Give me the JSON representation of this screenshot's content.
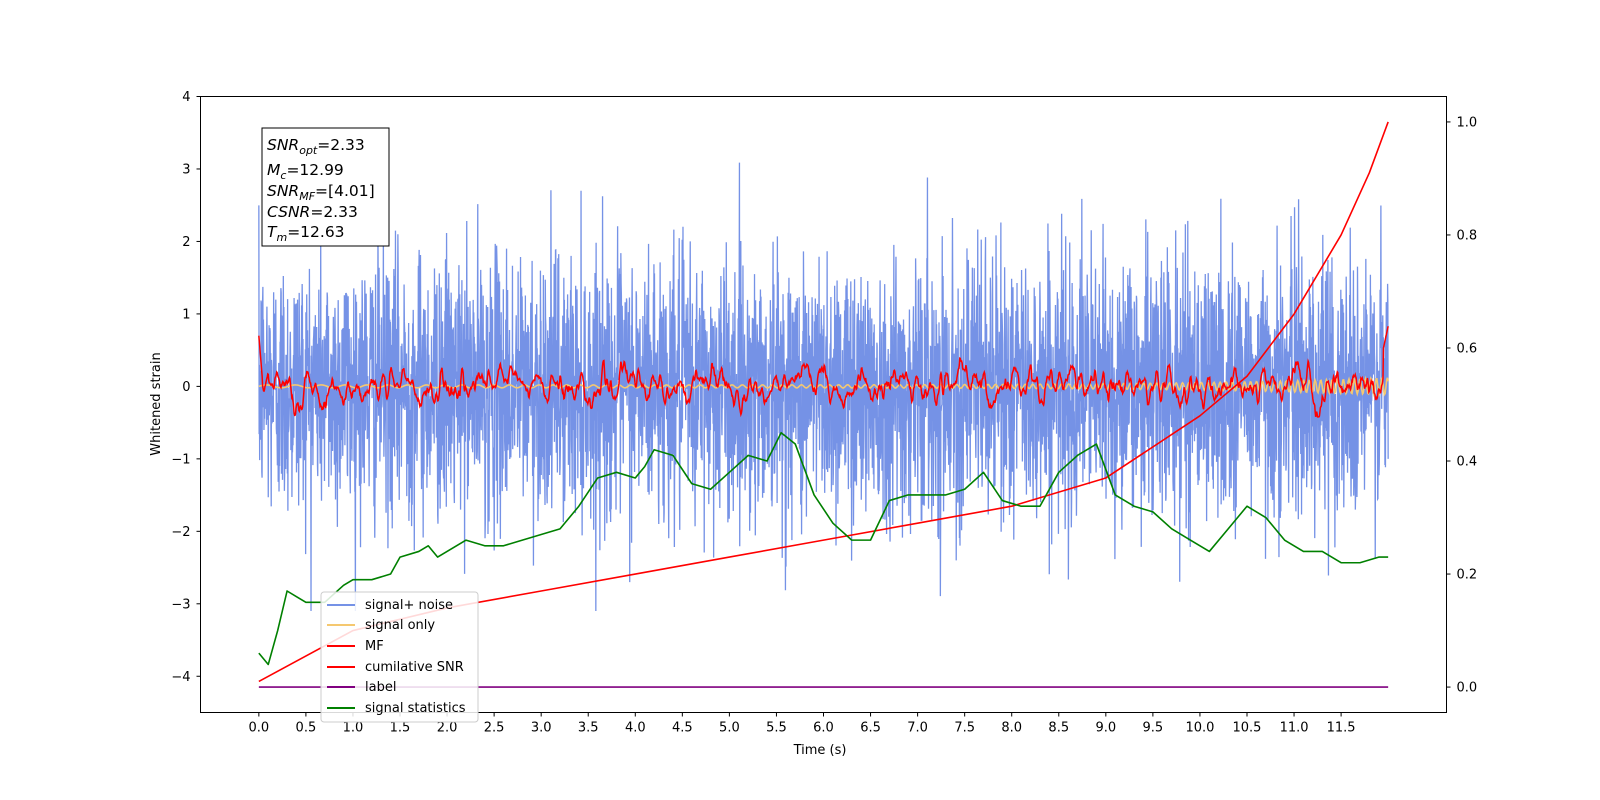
{
  "chart_data": {
    "type": "line",
    "xlabel": "Time (s)",
    "ylabel": "Whitened strain",
    "xlim": [
      -0.62,
      12.62
    ],
    "ylim_left": [
      -4.5,
      4.0
    ],
    "ylim_right": [
      -0.045,
      1.045
    ],
    "x_ticks": [
      "0.0",
      "0.5",
      "1.0",
      "1.5",
      "2.0",
      "2.5",
      "3.0",
      "3.5",
      "4.0",
      "4.5",
      "5.0",
      "5.5",
      "6.0",
      "6.5",
      "7.0",
      "7.5",
      "8.0",
      "8.5",
      "9.0",
      "9.5",
      "10.0",
      "10.5",
      "11.0",
      "11.5"
    ],
    "y_ticks_left": [
      "4",
      "3",
      "2",
      "1",
      "0",
      "−1",
      "−2",
      "−3",
      "−4"
    ],
    "y_ticks_right": [
      "1.0",
      "0.8",
      "0.6",
      "0.4",
      "0.2",
      "0.0"
    ],
    "grid": false,
    "legend_position": "lower-left",
    "info_box": {
      "snr_opt": {
        "base": "SNR",
        "sub": "opt",
        "value": "=2.33"
      },
      "mc": {
        "base": "M",
        "sub": "c",
        "value": "=12.99"
      },
      "snr_mf": {
        "base": "SNR",
        "sub": "MF",
        "value": "=[4.01]"
      },
      "csnr": {
        "base": "CSNR",
        "sub": "",
        "value": "=2.33"
      },
      "tm": {
        "base": "T",
        "sub": "m",
        "value": "=12.63"
      }
    },
    "series": [
      {
        "name": "signal+ noise",
        "color": "#7592e6",
        "axis": "left",
        "description_range": [
          -3.1,
          3.6
        ],
        "std": 0.9
      },
      {
        "name": "signal only",
        "color": "#f5c870",
        "axis": "left"
      },
      {
        "name": "MF",
        "color": "#ff0000",
        "axis": "left"
      },
      {
        "name": "cumilative SNR",
        "color": "#ff0000",
        "axis": "right",
        "x": [
          0.0,
          1.0,
          2.0,
          3.0,
          4.0,
          5.0,
          6.0,
          7.0,
          8.0,
          9.0,
          10.0,
          10.5,
          11.0,
          11.5,
          11.8,
          12.0
        ],
        "values": [
          0.01,
          0.1,
          0.14,
          0.17,
          0.2,
          0.23,
          0.26,
          0.29,
          0.32,
          0.37,
          0.48,
          0.55,
          0.66,
          0.8,
          0.91,
          1.0
        ]
      },
      {
        "name": "label",
        "color": "#800080",
        "axis": "right",
        "x": [
          0.0,
          12.0
        ],
        "values": [
          0.0,
          0.0
        ]
      },
      {
        "name": "signal statistics",
        "color": "#008000",
        "axis": "right",
        "x": [
          0.0,
          0.1,
          0.2,
          0.3,
          0.4,
          0.5,
          0.7,
          0.9,
          1.0,
          1.2,
          1.4,
          1.5,
          1.7,
          1.8,
          1.9,
          2.0,
          2.2,
          2.4,
          2.6,
          2.8,
          3.0,
          3.2,
          3.4,
          3.6,
          3.8,
          4.0,
          4.1,
          4.2,
          4.4,
          4.6,
          4.8,
          5.0,
          5.2,
          5.4,
          5.55,
          5.7,
          5.9,
          6.1,
          6.3,
          6.5,
          6.7,
          6.9,
          7.1,
          7.3,
          7.5,
          7.7,
          7.9,
          8.1,
          8.3,
          8.5,
          8.7,
          8.9,
          9.1,
          9.3,
          9.5,
          9.7,
          9.9,
          10.1,
          10.3,
          10.5,
          10.7,
          10.9,
          11.1,
          11.3,
          11.5,
          11.7,
          11.9,
          12.0
        ],
        "values": [
          0.06,
          0.04,
          0.1,
          0.17,
          0.16,
          0.15,
          0.15,
          0.18,
          0.19,
          0.19,
          0.2,
          0.23,
          0.24,
          0.25,
          0.23,
          0.24,
          0.26,
          0.25,
          0.25,
          0.26,
          0.27,
          0.28,
          0.32,
          0.37,
          0.38,
          0.37,
          0.39,
          0.42,
          0.41,
          0.36,
          0.35,
          0.38,
          0.41,
          0.4,
          0.45,
          0.43,
          0.34,
          0.29,
          0.26,
          0.26,
          0.33,
          0.34,
          0.34,
          0.34,
          0.35,
          0.38,
          0.33,
          0.32,
          0.32,
          0.38,
          0.41,
          0.43,
          0.34,
          0.32,
          0.31,
          0.28,
          0.26,
          0.24,
          0.28,
          0.32,
          0.3,
          0.26,
          0.24,
          0.24,
          0.22,
          0.22,
          0.23,
          0.23
        ]
      }
    ]
  }
}
